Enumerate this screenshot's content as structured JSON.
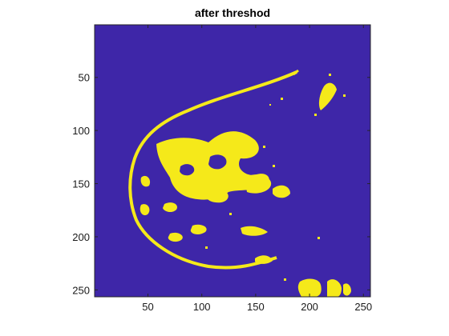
{
  "figure": {
    "title": "after threshod"
  },
  "image_plot": {
    "colors": {
      "background": "#3e26a8",
      "foreground": "#f5e91a",
      "axis": "#262626"
    },
    "x_ticks": [
      "50",
      "100",
      "150",
      "200",
      "250"
    ],
    "y_ticks": [
      "50",
      "100",
      "150",
      "200",
      "250"
    ],
    "x_tick_values": [
      50,
      100,
      150,
      200,
      250
    ],
    "y_tick_values": [
      50,
      100,
      150,
      200,
      250
    ],
    "x_range": [
      0.5,
      256.5
    ],
    "y_range": [
      0.5,
      256.5
    ]
  }
}
